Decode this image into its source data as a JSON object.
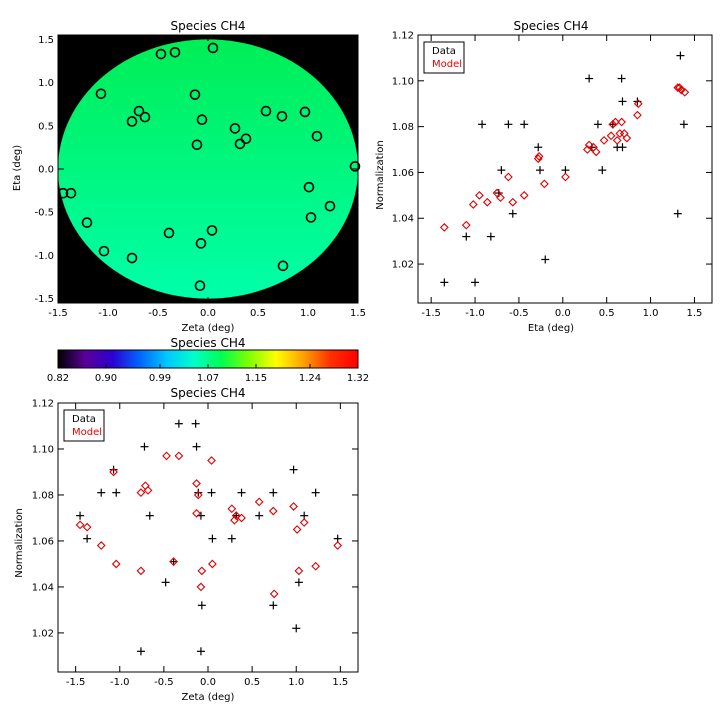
{
  "chart_data": [
    {
      "type": "scatter",
      "title": "Species CH4",
      "xlabel": "Zeta (deg)",
      "ylabel": "Eta (deg)",
      "xlim": [
        -1.5,
        1.5
      ],
      "ylim": [
        -1.55,
        1.55
      ],
      "xticks": [
        "-1.5",
        "-1.0",
        "-0.5",
        "0.0",
        "0.5",
        "1.0",
        "1.5"
      ],
      "yticks": [
        "-1.5",
        "-1.0",
        "-0.5",
        "0.0",
        "0.5",
        "1.0",
        "1.5"
      ],
      "field_color_range": [
        "#00ee55",
        "#00ffaa"
      ],
      "background": "#000000",
      "marker": "circle",
      "points": [
        {
          "x": -0.47,
          "y": 1.33,
          "v": 1.07
        },
        {
          "x": -0.33,
          "y": 1.35,
          "v": 1.07
        },
        {
          "x": 0.05,
          "y": 1.4,
          "v": 1.08
        },
        {
          "x": -1.07,
          "y": 0.87,
          "v": 1.08
        },
        {
          "x": -0.13,
          "y": 0.86,
          "v": 1.08
        },
        {
          "x": -0.69,
          "y": 0.67,
          "v": 1.08
        },
        {
          "x": -0.63,
          "y": 0.6,
          "v": 1.08
        },
        {
          "x": -0.76,
          "y": 0.55,
          "v": 1.08
        },
        {
          "x": -0.06,
          "y": 0.57,
          "v": 1.08
        },
        {
          "x": 0.58,
          "y": 0.67,
          "v": 1.08
        },
        {
          "x": 0.74,
          "y": 0.61,
          "v": 1.08
        },
        {
          "x": 0.97,
          "y": 0.66,
          "v": 1.08
        },
        {
          "x": 0.27,
          "y": 0.47,
          "v": 1.08
        },
        {
          "x": 1.09,
          "y": 0.38,
          "v": 1.08
        },
        {
          "x": 0.38,
          "y": 0.35,
          "v": 1.08
        },
        {
          "x": 0.32,
          "y": 0.29,
          "v": 1.08
        },
        {
          "x": -0.11,
          "y": 0.28,
          "v": 1.08
        },
        {
          "x": 1.47,
          "y": 0.03,
          "v": 1.07
        },
        {
          "x": 1.01,
          "y": -0.21,
          "v": 1.07
        },
        {
          "x": -1.45,
          "y": -0.28,
          "v": 1.07
        },
        {
          "x": -1.37,
          "y": -0.28,
          "v": 1.07
        },
        {
          "x": 1.22,
          "y": -0.43,
          "v": 1.07
        },
        {
          "x": 1.03,
          "y": -0.56,
          "v": 1.07
        },
        {
          "x": -1.21,
          "y": -0.62,
          "v": 1.07
        },
        {
          "x": 0.04,
          "y": -0.71,
          "v": 1.07
        },
        {
          "x": -0.39,
          "y": -0.74,
          "v": 1.07
        },
        {
          "x": -0.07,
          "y": -0.86,
          "v": 1.07
        },
        {
          "x": -1.04,
          "y": -0.95,
          "v": 1.07
        },
        {
          "x": -0.76,
          "y": -1.03,
          "v": 1.07
        },
        {
          "x": 0.75,
          "y": -1.12,
          "v": 1.07
        },
        {
          "x": -0.08,
          "y": -1.35,
          "v": 1.07
        }
      ]
    },
    {
      "type": "scatter",
      "title": "Species CH4",
      "xlabel": "Eta (deg)",
      "ylabel": "Normalization",
      "xlim": [
        -1.65,
        1.7
      ],
      "ylim": [
        1.003,
        1.12
      ],
      "xticks": [
        "-1.5",
        "-1.0",
        "-0.5",
        "0.0",
        "0.5",
        "1.0",
        "1.5"
      ],
      "yticks": [
        "1.02",
        "1.04",
        "1.06",
        "1.08",
        "1.10",
        "1.12"
      ],
      "legend": {
        "position": "top-left",
        "entries": [
          {
            "label": "Data",
            "color": "#000000"
          },
          {
            "label": "Model",
            "color": "#e00000"
          }
        ]
      },
      "series": [
        {
          "name": "Data",
          "marker": "plus",
          "color": "#000000",
          "points": [
            [
              -1.35,
              1.012
            ],
            [
              -1.1,
              1.032
            ],
            [
              -1.0,
              1.012
            ],
            [
              -0.92,
              1.081
            ],
            [
              -0.82,
              1.032
            ],
            [
              -0.73,
              1.051
            ],
            [
              -0.7,
              1.061
            ],
            [
              -0.62,
              1.081
            ],
            [
              -0.57,
              1.042
            ],
            [
              -0.44,
              1.081
            ],
            [
              -0.28,
              1.071
            ],
            [
              -0.26,
              1.061
            ],
            [
              -0.2,
              1.022
            ],
            [
              0.03,
              1.061
            ],
            [
              0.3,
              1.101
            ],
            [
              0.33,
              1.071
            ],
            [
              0.4,
              1.081
            ],
            [
              0.45,
              1.061
            ],
            [
              0.57,
              1.081
            ],
            [
              0.62,
              1.071
            ],
            [
              0.67,
              1.101
            ],
            [
              0.68,
              1.071
            ],
            [
              0.68,
              1.091
            ],
            [
              0.85,
              1.091
            ],
            [
              1.31,
              1.042
            ],
            [
              1.34,
              1.111
            ],
            [
              1.38,
              1.081
            ]
          ]
        },
        {
          "name": "Model",
          "marker": "diamond",
          "color": "#e00000",
          "points": [
            [
              -1.35,
              1.036
            ],
            [
              -1.1,
              1.037
            ],
            [
              -1.02,
              1.046
            ],
            [
              -0.95,
              1.05
            ],
            [
              -0.86,
              1.047
            ],
            [
              -0.75,
              1.051
            ],
            [
              -0.71,
              1.049
            ],
            [
              -0.62,
              1.058
            ],
            [
              -0.57,
              1.047
            ],
            [
              -0.44,
              1.05
            ],
            [
              -0.28,
              1.066
            ],
            [
              -0.27,
              1.067
            ],
            [
              -0.21,
              1.055
            ],
            [
              0.03,
              1.058
            ],
            [
              0.28,
              1.07
            ],
            [
              0.3,
              1.072
            ],
            [
              0.35,
              1.071
            ],
            [
              0.38,
              1.069
            ],
            [
              0.47,
              1.074
            ],
            [
              0.55,
              1.076
            ],
            [
              0.57,
              1.081
            ],
            [
              0.6,
              1.082
            ],
            [
              0.62,
              1.074
            ],
            [
              0.65,
              1.077
            ],
            [
              0.67,
              1.082
            ],
            [
              0.7,
              1.077
            ],
            [
              0.73,
              1.075
            ],
            [
              0.85,
              1.085
            ],
            [
              0.86,
              1.09
            ],
            [
              1.31,
              1.097
            ],
            [
              1.33,
              1.097
            ],
            [
              1.35,
              1.096
            ],
            [
              1.39,
              1.095
            ]
          ]
        }
      ]
    },
    {
      "type": "scatter",
      "title": "Species CH4",
      "xlabel": "Zeta (deg)",
      "ylabel": "Normalization",
      "xlim": [
        -1.7,
        1.7
      ],
      "ylim": [
        1.003,
        1.12
      ],
      "xticks": [
        "-1.5",
        "-1.0",
        "-0.5",
        "0.0",
        "0.5",
        "1.0",
        "1.5"
      ],
      "yticks": [
        "1.02",
        "1.04",
        "1.06",
        "1.08",
        "1.10",
        "1.12"
      ],
      "legend": {
        "position": "top-left",
        "entries": [
          {
            "label": "Data",
            "color": "#000000"
          },
          {
            "label": "Model",
            "color": "#e00000"
          }
        ]
      },
      "series": [
        {
          "name": "Data",
          "marker": "plus",
          "color": "#000000",
          "points": [
            [
              -1.45,
              1.071
            ],
            [
              -1.37,
              1.061
            ],
            [
              -1.21,
              1.081
            ],
            [
              -1.07,
              1.091
            ],
            [
              -1.04,
              1.081
            ],
            [
              -0.76,
              1.012
            ],
            [
              -0.72,
              1.101
            ],
            [
              -0.66,
              1.071
            ],
            [
              -0.48,
              1.042
            ],
            [
              -0.39,
              1.051
            ],
            [
              -0.33,
              1.111
            ],
            [
              -0.14,
              1.111
            ],
            [
              -0.13,
              1.101
            ],
            [
              -0.11,
              1.081
            ],
            [
              -0.08,
              1.071
            ],
            [
              -0.07,
              1.032
            ],
            [
              -0.08,
              1.012
            ],
            [
              0.04,
              1.081
            ],
            [
              0.05,
              1.061
            ],
            [
              0.27,
              1.061
            ],
            [
              0.32,
              1.071
            ],
            [
              0.38,
              1.081
            ],
            [
              0.58,
              1.071
            ],
            [
              0.74,
              1.032
            ],
            [
              0.74,
              1.081
            ],
            [
              0.97,
              1.091
            ],
            [
              1.0,
              1.022
            ],
            [
              1.03,
              1.042
            ],
            [
              1.09,
              1.071
            ],
            [
              1.22,
              1.081
            ],
            [
              1.47,
              1.061
            ]
          ]
        },
        {
          "name": "Model",
          "marker": "diamond",
          "color": "#e00000",
          "points": [
            [
              -1.45,
              1.067
            ],
            [
              -1.37,
              1.066
            ],
            [
              -1.21,
              1.058
            ],
            [
              -1.07,
              1.09
            ],
            [
              -1.04,
              1.05
            ],
            [
              -0.76,
              1.047
            ],
            [
              -0.76,
              1.081
            ],
            [
              -0.71,
              1.084
            ],
            [
              -0.68,
              1.082
            ],
            [
              -0.39,
              1.051
            ],
            [
              -0.47,
              1.097
            ],
            [
              -0.33,
              1.097
            ],
            [
              -0.13,
              1.085
            ],
            [
              -0.11,
              1.08
            ],
            [
              -0.13,
              1.072
            ],
            [
              -0.07,
              1.047
            ],
            [
              -0.08,
              1.04
            ],
            [
              0.04,
              1.095
            ],
            [
              0.05,
              1.05
            ],
            [
              0.27,
              1.074
            ],
            [
              0.32,
              1.071
            ],
            [
              0.38,
              1.07
            ],
            [
              0.3,
              1.069
            ],
            [
              0.58,
              1.077
            ],
            [
              0.74,
              1.073
            ],
            [
              0.75,
              1.037
            ],
            [
              0.97,
              1.075
            ],
            [
              1.01,
              1.065
            ],
            [
              1.03,
              1.047
            ],
            [
              1.09,
              1.068
            ],
            [
              1.22,
              1.049
            ],
            [
              1.47,
              1.058
            ]
          ]
        }
      ]
    }
  ],
  "colorbar": {
    "title": "Species CH4",
    "ticks": [
      "0.82",
      "0.90",
      "0.99",
      "1.07",
      "1.15",
      "1.24",
      "1.32"
    ],
    "vmin": 0.82,
    "vmax": 1.32,
    "colormap_stops": [
      "#000000",
      "#5a009a",
      "#2b00d0",
      "#0066ff",
      "#00c8ff",
      "#00ffc8",
      "#00ff50",
      "#80ff00",
      "#ffff00",
      "#ffa000",
      "#ff3000",
      "#ff0000"
    ]
  }
}
